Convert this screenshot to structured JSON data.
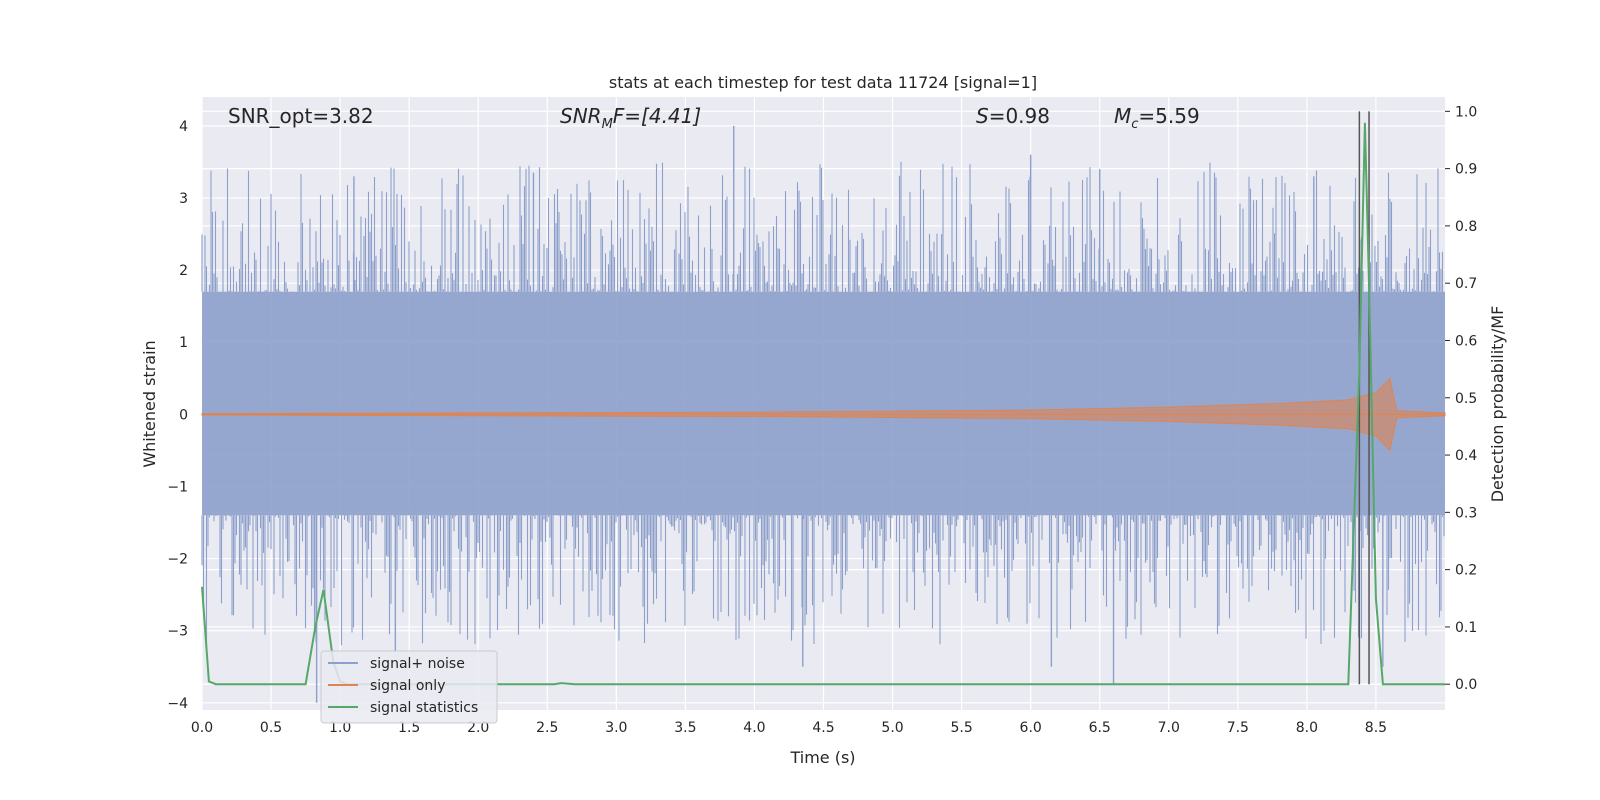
{
  "chart_data": {
    "type": "line",
    "title": "stats at each timestep for test data 11724 [signal=1]",
    "xlabel": "Time (s)",
    "ylabel_left": "Whitened strain",
    "ylabel_right": "Detection probability/MF",
    "xlim": [
      0.0,
      9.0
    ],
    "ylim_left": [
      -4.1,
      4.4
    ],
    "ylim_right": [
      -0.045,
      1.025
    ],
    "x_ticks": [
      "0.0",
      "0.5",
      "1.0",
      "1.5",
      "2.0",
      "2.5",
      "3.0",
      "3.5",
      "4.0",
      "4.5",
      "5.0",
      "5.5",
      "6.0",
      "6.5",
      "7.0",
      "7.5",
      "8.0",
      "8.5"
    ],
    "y_ticks_left": [
      "4",
      "3",
      "2",
      "1",
      "0",
      "−1",
      "−2",
      "−3",
      "−4"
    ],
    "y_ticks_right": [
      "1.0",
      "0.9",
      "0.8",
      "0.7",
      "0.6",
      "0.5",
      "0.4",
      "0.3",
      "0.2",
      "0.1",
      "0.0"
    ],
    "grid": true,
    "legend_position": "lower-left",
    "colors": {
      "background": "#eaeaf2",
      "grid": "#ffffff",
      "noise": "#8da0cb",
      "signal": "#dd8452",
      "statistics": "#55a868",
      "vline": "#555555"
    },
    "annotations": {
      "snr_opt": "SNR_opt=3.82",
      "snr_mf_base": "SNR",
      "snr_mf_sub": "M",
      "snr_mf_rest": "F=[4.41]",
      "s_base": "S",
      "s_rest": "=0.98",
      "mc_base": "M",
      "mc_sub": "c",
      "mc_rest": "=5.59"
    },
    "series": [
      {
        "name": "signal+ noise",
        "axis": "left",
        "kind": "noise",
        "envelope": {
          "x": [
            0,
            9
          ],
          "upper": 1.7,
          "lower": -1.4
        },
        "notable_peaks": [
          [
            3.85,
            4.0
          ],
          [
            1.1,
            3.3
          ],
          [
            2.4,
            3.35
          ],
          [
            6.5,
            3.4
          ],
          [
            6.0,
            3.6
          ],
          [
            8.05,
            3.3
          ],
          [
            0.83,
            -4.0
          ],
          [
            4.35,
            -3.5
          ],
          [
            6.6,
            -3.75
          ],
          [
            1.4,
            -3.3
          ],
          [
            6.15,
            -3.5
          ],
          [
            8.55,
            -3.5
          ]
        ]
      },
      {
        "name": "signal only",
        "axis": "left",
        "kind": "chirp",
        "amplitude_points": [
          [
            0,
            0.01
          ],
          [
            2.0,
            0.02
          ],
          [
            4.0,
            0.03
          ],
          [
            6.0,
            0.06
          ],
          [
            7.0,
            0.1
          ],
          [
            7.8,
            0.15
          ],
          [
            8.3,
            0.2
          ],
          [
            8.5,
            0.3
          ],
          [
            8.6,
            0.5
          ],
          [
            8.65,
            0.05
          ],
          [
            9.0,
            0.02
          ]
        ]
      },
      {
        "name": "signal statistics",
        "axis": "right",
        "x": [
          0.0,
          0.05,
          0.1,
          0.15,
          0.2,
          0.75,
          0.82,
          0.88,
          0.95,
          1.0,
          1.05,
          1.1,
          2.55,
          2.6,
          2.7,
          8.3,
          8.38,
          8.42,
          8.45,
          8.5,
          8.55,
          8.6,
          9.0
        ],
        "values": [
          0.17,
          0.005,
          0.0,
          0.0,
          0.0,
          0.0,
          0.1,
          0.165,
          0.04,
          0.005,
          0.0,
          0.0,
          0.0,
          0.002,
          0.0,
          0.0,
          0.55,
          0.98,
          0.7,
          0.15,
          0.0,
          0.0,
          0.0
        ]
      }
    ],
    "vertical_lines": [
      8.38,
      8.45
    ]
  }
}
